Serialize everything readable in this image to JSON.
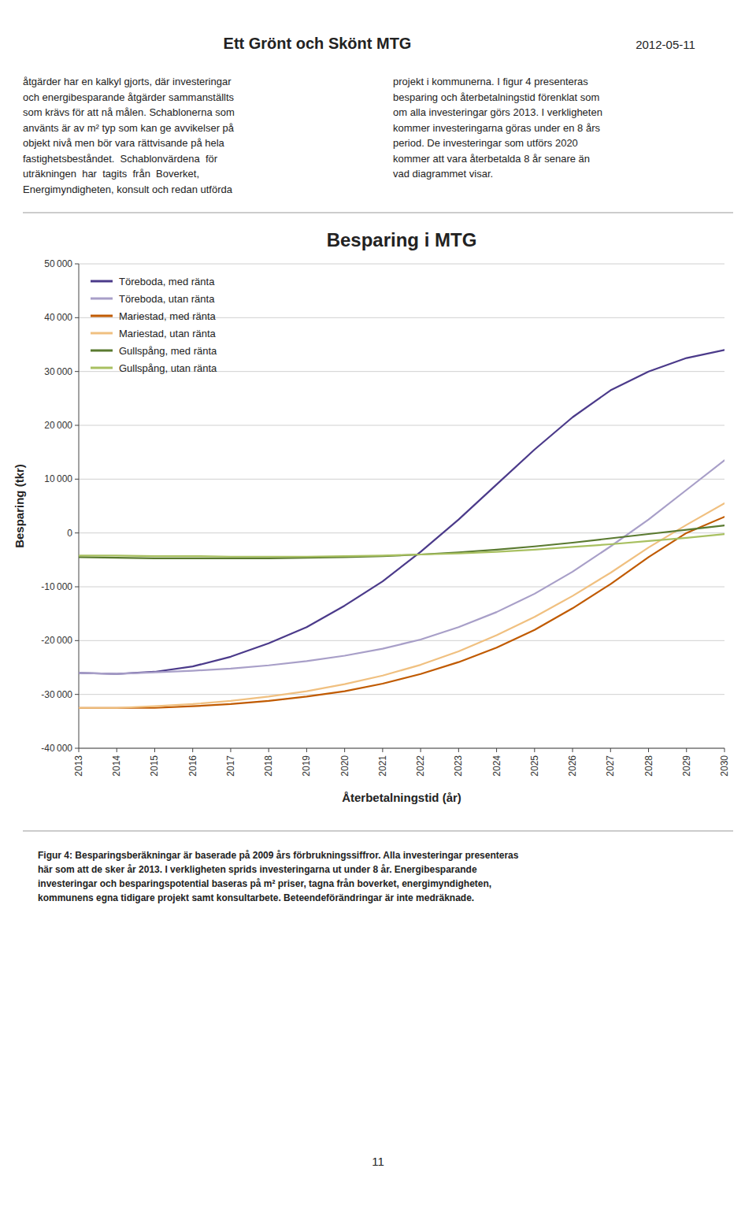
{
  "chart_data": {
    "type": "line",
    "title": "Besparing i MTG",
    "x_label": "Återbetalningstid (år)",
    "y_label": "Besparing (tkr)",
    "x": [
      2013,
      2014,
      2015,
      2016,
      2017,
      2018,
      2019,
      2020,
      2021,
      2022,
      2023,
      2024,
      2025,
      2026,
      2027,
      2028,
      2029,
      2030
    ],
    "series": [
      {
        "name": "Töreboda, med ränta",
        "color": "#4B3A8A",
        "values": [
          -26000,
          -26200,
          -25800,
          -24800,
          -23000,
          -20500,
          -17500,
          -13500,
          -9000,
          -3500,
          2500,
          9000,
          15500,
          21500,
          26500,
          30000,
          32500,
          34000
        ]
      },
      {
        "name": "Töreboda, utan ränta",
        "color": "#A89FC8",
        "values": [
          -26000,
          -26200,
          -25900,
          -25600,
          -25200,
          -24600,
          -23800,
          -22800,
          -21500,
          -19800,
          -17500,
          -14700,
          -11300,
          -7200,
          -2500,
          2500,
          8000,
          13500
        ]
      },
      {
        "name": "Mariestad, med ränta",
        "color": "#C05A00",
        "values": [
          -32500,
          -32500,
          -32500,
          -32200,
          -31800,
          -31200,
          -30400,
          -29400,
          -28000,
          -26200,
          -24000,
          -21300,
          -18000,
          -14000,
          -9500,
          -4500,
          0,
          3000
        ]
      },
      {
        "name": "Mariestad, utan ränta",
        "color": "#F0C080",
        "values": [
          -32500,
          -32500,
          -32200,
          -31800,
          -31200,
          -30400,
          -29400,
          -28100,
          -26500,
          -24500,
          -22000,
          -19000,
          -15600,
          -11700,
          -7400,
          -2700,
          1500,
          5500
        ]
      },
      {
        "name": "Gullspång, med ränta",
        "color": "#5A7A30",
        "values": [
          -4500,
          -4600,
          -4700,
          -4700,
          -4700,
          -4700,
          -4600,
          -4500,
          -4300,
          -4000,
          -3600,
          -3100,
          -2500,
          -1800,
          -1000,
          -200,
          600,
          1400
        ]
      },
      {
        "name": "Gullspång, utan ränta",
        "color": "#A8C060",
        "values": [
          -4200,
          -4200,
          -4300,
          -4300,
          -4400,
          -4400,
          -4400,
          -4300,
          -4200,
          -4000,
          -3800,
          -3500,
          -3100,
          -2600,
          -2100,
          -1500,
          -900,
          -200
        ]
      }
    ],
    "xlim": [
      2013,
      2030
    ],
    "xticks": [
      2013,
      2014,
      2015,
      2016,
      2017,
      2018,
      2019,
      2020,
      2021,
      2022,
      2023,
      2024,
      2025,
      2026,
      2027,
      2028,
      2029,
      2030
    ],
    "ylim": [
      -40000,
      50000
    ],
    "yticks": [
      {
        "value": -40000,
        "label": "-40 000"
      },
      {
        "value": -30000,
        "label": "-30 000"
      },
      {
        "value": -20000,
        "label": "-20 000"
      },
      {
        "value": -10000,
        "label": "-10 000"
      },
      0,
      {
        "value": 10000,
        "label": "10 000"
      },
      {
        "value": 20000,
        "label": "20 000"
      },
      {
        "value": 30000,
        "label": "30 000"
      },
      {
        "value": 40000,
        "label": "40 000"
      },
      {
        "value": 50000,
        "label": "50 000"
      }
    ],
    "grid": true,
    "legend": "upper left",
    "annotations": [
      "Ett Grönt och Skönt MTG",
      "2012-05-11",
      "åtgärder har en kalkyl gjorts, där investeringar\noch energibesparande åtgärder sammanställts\nsom krävs för att nå målen. Schablonerna som\nanvänts är av m² typ som kan ge avvikelser på\nobjekt nivå men bör vara rättvisande på hela\nfastighetsbeståndet.  Schablonvärdena  för\nuträkningen  har  tagits  från  Boverket,\nEnergimyndigheten, konsult och redan utförda",
      "projekt i kommunerna. I figur 4 presenteras\nbesparing och återbetalningstid förenklat som\nom alla investeringar görs 2013. I verkligheten\nkommer investeringarna göras under en 8 års\nperiod. De investeringar som utförs 2020\nkommer att vara återbetalda 8 år senare än\nvad diagrammet visar.",
      "Figur 4: Besparingsberäkningar är baserade på 2009 års förbrukningssiffror. Alla investeringar presenteras\nhär som att de sker år 2013. I verkligheten sprids investeringarna ut under 8 år. Energibesparande\ninvesteringar och besparingspotential baseras på m² priser, tagna från boverket, energimyndigheten,\nkommunens egna tidigare projekt samt konsultarbete. Beteendeförändringar är inte medräknade.",
      "11"
    ]
  }
}
